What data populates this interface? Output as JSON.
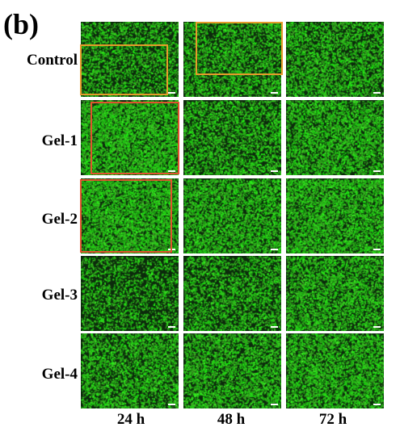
{
  "panel_letter": "(b)",
  "rows": [
    "Control",
    "Gel-1",
    "Gel-2",
    "Gel-3",
    "Gel-4"
  ],
  "columns": [
    "24 h",
    "48 h",
    "72 h"
  ],
  "colors": {
    "cell_green": "#2fd42a",
    "background_dark": "#0c2a0c",
    "highlight_orange": "#e69b2a",
    "highlight_red": "#e0532f"
  },
  "images": [
    {
      "row": "Control",
      "column": "24 h",
      "density": 0.45
    },
    {
      "row": "Control",
      "column": "48 h",
      "density": 0.5
    },
    {
      "row": "Control",
      "column": "72 h",
      "density": 0.55
    },
    {
      "row": "Gel-1",
      "column": "24 h",
      "density": 0.78
    },
    {
      "row": "Gel-1",
      "column": "48 h",
      "density": 0.5
    },
    {
      "row": "Gel-1",
      "column": "72 h",
      "density": 0.62
    },
    {
      "row": "Gel-2",
      "column": "24 h",
      "density": 0.75
    },
    {
      "row": "Gel-2",
      "column": "48 h",
      "density": 0.65
    },
    {
      "row": "Gel-2",
      "column": "72 h",
      "density": 0.72
    },
    {
      "row": "Gel-3",
      "column": "24 h",
      "density": 0.35
    },
    {
      "row": "Gel-3",
      "column": "48 h",
      "density": 0.45
    },
    {
      "row": "Gel-3",
      "column": "72 h",
      "density": 0.6
    },
    {
      "row": "Gel-4",
      "column": "24 h",
      "density": 0.55
    },
    {
      "row": "Gel-4",
      "column": "48 h",
      "density": 0.6
    },
    {
      "row": "Gel-4",
      "column": "72 h",
      "density": 0.65
    }
  ]
}
